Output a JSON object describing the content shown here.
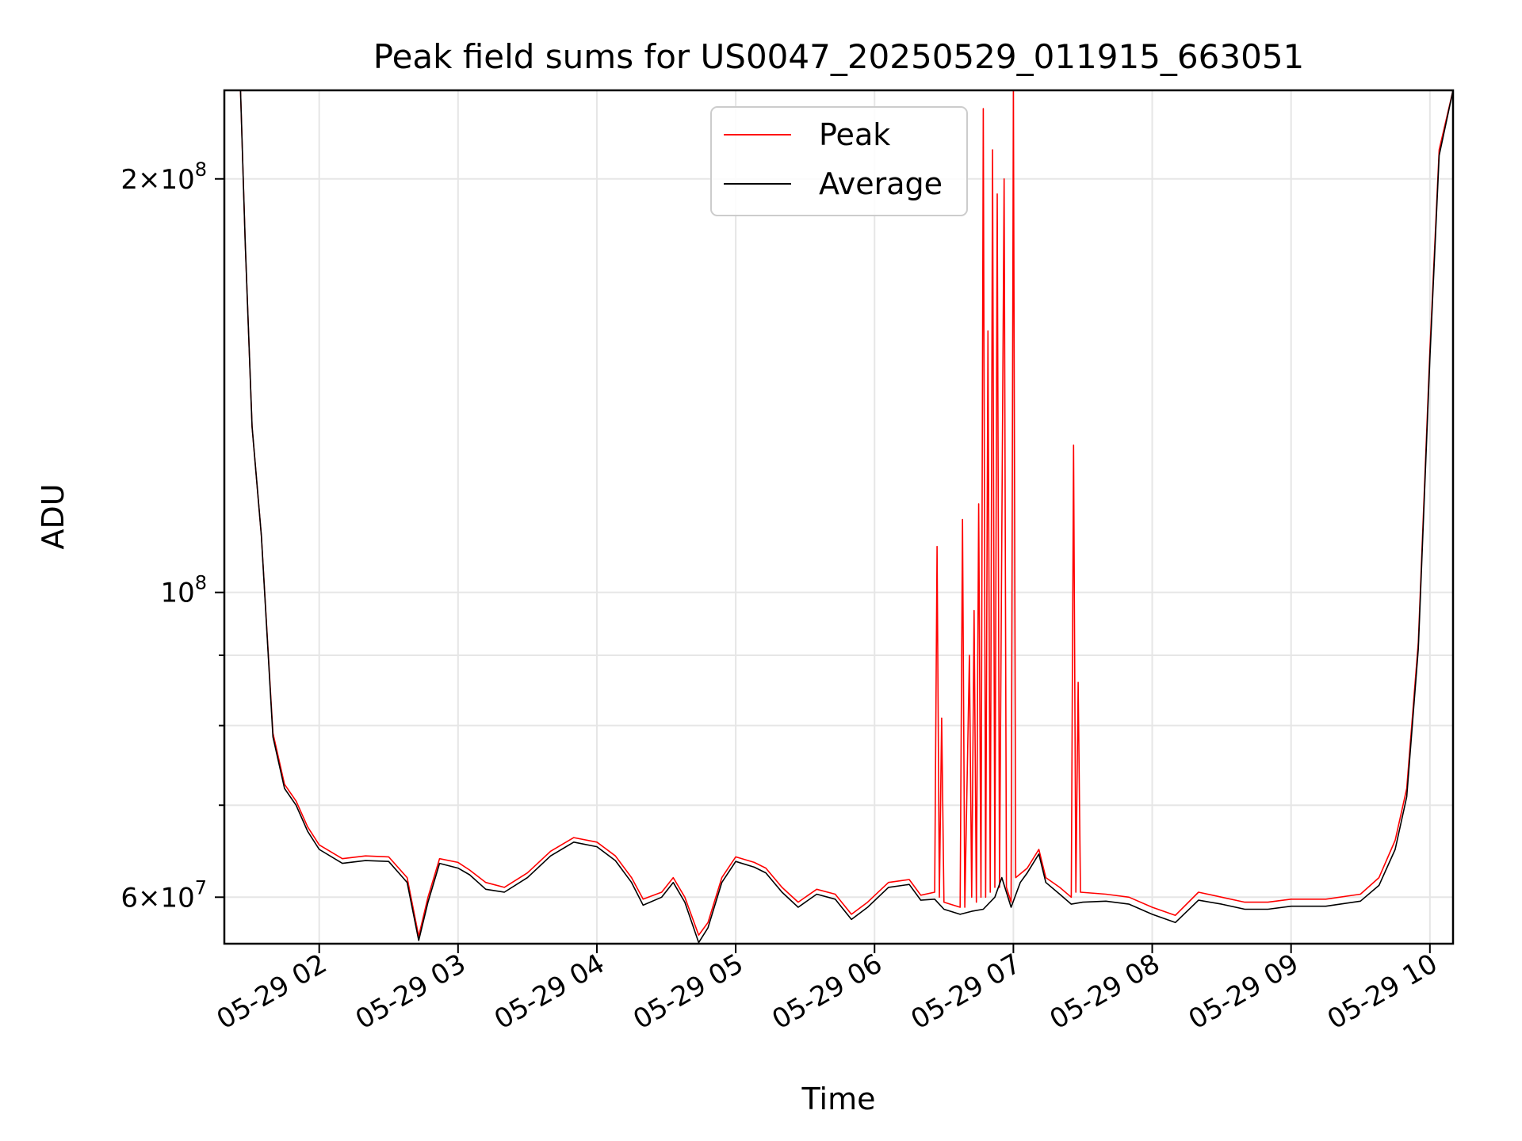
{
  "chart_data": {
    "type": "line",
    "title": "Peak field sums for US0047_20250529_011915_663051",
    "xlabel": "Time",
    "ylabel": "ADU",
    "yscale": "log",
    "grid": true,
    "legend_placement": "top-center",
    "xlim": [
      "2025-05-29 01:19",
      "2025-05-29 10:10"
    ],
    "ylim": [
      55500000,
      232000000
    ],
    "x_ticks": [
      {
        "value": "2025-05-29 02:00",
        "label": "05-29 02"
      },
      {
        "value": "2025-05-29 03:00",
        "label": "05-29 03"
      },
      {
        "value": "2025-05-29 04:00",
        "label": "05-29 04"
      },
      {
        "value": "2025-05-29 05:00",
        "label": "05-29 05"
      },
      {
        "value": "2025-05-29 06:00",
        "label": "05-29 06"
      },
      {
        "value": "2025-05-29 07:00",
        "label": "05-29 07"
      },
      {
        "value": "2025-05-29 08:00",
        "label": "05-29 08"
      },
      {
        "value": "2025-05-29 09:00",
        "label": "05-29 09"
      },
      {
        "value": "2025-05-29 10:00",
        "label": "05-29 10"
      }
    ],
    "y_major_ticks": [
      {
        "value": 60000000,
        "mantissa": "6",
        "exponent": "7"
      },
      {
        "value": 100000000,
        "mantissa": "",
        "exponent": "8"
      },
      {
        "value": 200000000,
        "mantissa": "2",
        "exponent": "8"
      }
    ],
    "y_minor_gridlines": [
      70000000,
      80000000,
      90000000
    ],
    "series": [
      {
        "name": "Peak",
        "color": "#ff0000",
        "points": [
          [
            "2025-05-29 01:26",
            232000000
          ],
          [
            "2025-05-29 01:28",
            180000000
          ],
          [
            "2025-05-29 01:31",
            132000000
          ],
          [
            "2025-05-29 01:35",
            110000000
          ],
          [
            "2025-05-29 01:40",
            79000000
          ],
          [
            "2025-05-29 01:45",
            72500000
          ],
          [
            "2025-05-29 01:50",
            70500000
          ],
          [
            "2025-05-29 01:55",
            67500000
          ],
          [
            "2025-05-29 02:00",
            65500000
          ],
          [
            "2025-05-29 02:10",
            64000000
          ],
          [
            "2025-05-29 02:20",
            64300000
          ],
          [
            "2025-05-29 02:30",
            64200000
          ],
          [
            "2025-05-29 02:38",
            62000000
          ],
          [
            "2025-05-29 02:43",
            56200000
          ],
          [
            "2025-05-29 02:47",
            60000000
          ],
          [
            "2025-05-29 02:52",
            64000000
          ],
          [
            "2025-05-29 03:00",
            63600000
          ],
          [
            "2025-05-29 03:05",
            62800000
          ],
          [
            "2025-05-29 03:12",
            61500000
          ],
          [
            "2025-05-29 03:20",
            61000000
          ],
          [
            "2025-05-29 03:30",
            62500000
          ],
          [
            "2025-05-29 03:40",
            64800000
          ],
          [
            "2025-05-29 03:50",
            66300000
          ],
          [
            "2025-05-29 04:00",
            65800000
          ],
          [
            "2025-05-29 04:08",
            64300000
          ],
          [
            "2025-05-29 04:15",
            62000000
          ],
          [
            "2025-05-29 04:20",
            59800000
          ],
          [
            "2025-05-29 04:28",
            60500000
          ],
          [
            "2025-05-29 04:33",
            62000000
          ],
          [
            "2025-05-29 04:38",
            60000000
          ],
          [
            "2025-05-29 04:44",
            56300000
          ],
          [
            "2025-05-29 04:48",
            57500000
          ],
          [
            "2025-05-29 04:54",
            62000000
          ],
          [
            "2025-05-29 05:00",
            64200000
          ],
          [
            "2025-05-29 05:08",
            63600000
          ],
          [
            "2025-05-29 05:13",
            63000000
          ],
          [
            "2025-05-29 05:20",
            61000000
          ],
          [
            "2025-05-29 05:27",
            59500000
          ],
          [
            "2025-05-29 05:35",
            60800000
          ],
          [
            "2025-05-29 05:43",
            60300000
          ],
          [
            "2025-05-29 05:50",
            58300000
          ],
          [
            "2025-05-29 05:57",
            59500000
          ],
          [
            "2025-05-29 06:06",
            61500000
          ],
          [
            "2025-05-29 06:15",
            61800000
          ],
          [
            "2025-05-29 06:20",
            60200000
          ],
          [
            "2025-05-29 06:26",
            60500000
          ],
          [
            "2025-05-29 06:27",
            108000000
          ],
          [
            "2025-05-29 06:28",
            60000000
          ],
          [
            "2025-05-29 06:29",
            81000000
          ],
          [
            "2025-05-29 06:30",
            59500000
          ],
          [
            "2025-05-29 06:37",
            59000000
          ],
          [
            "2025-05-29 06:38",
            113000000
          ],
          [
            "2025-05-29 06:39",
            59000000
          ],
          [
            "2025-05-29 06:41",
            90000000
          ],
          [
            "2025-05-29 06:42",
            60000000
          ],
          [
            "2025-05-29 06:43",
            97000000
          ],
          [
            "2025-05-29 06:44",
            59500000
          ],
          [
            "2025-05-29 06:45",
            116000000
          ],
          [
            "2025-05-29 06:46",
            60000000
          ],
          [
            "2025-05-29 06:47",
            225000000
          ],
          [
            "2025-05-29 06:48",
            60000000
          ],
          [
            "2025-05-29 06:49",
            155000000
          ],
          [
            "2025-05-29 06:50",
            60500000
          ],
          [
            "2025-05-29 06:51",
            210000000
          ],
          [
            "2025-05-29 06:52",
            61000000
          ],
          [
            "2025-05-29 06:53",
            195000000
          ],
          [
            "2025-05-29 06:54",
            61000000
          ],
          [
            "2025-05-29 06:56",
            200000000
          ],
          [
            "2025-05-29 06:57",
            61000000
          ],
          [
            "2025-05-29 06:59",
            59500000
          ],
          [
            "2025-05-29 07:00",
            232000000
          ],
          [
            "2025-05-29 07:01",
            62000000
          ],
          [
            "2025-05-29 07:06",
            63000000
          ],
          [
            "2025-05-29 07:11",
            65000000
          ],
          [
            "2025-05-29 07:14",
            62000000
          ],
          [
            "2025-05-29 07:20",
            61000000
          ],
          [
            "2025-05-29 07:25",
            60000000
          ],
          [
            "2025-05-29 07:26",
            128000000
          ],
          [
            "2025-05-29 07:27",
            60500000
          ],
          [
            "2025-05-29 07:28",
            86000000
          ],
          [
            "2025-05-29 07:29",
            60500000
          ],
          [
            "2025-05-29 07:40",
            60300000
          ],
          [
            "2025-05-29 07:50",
            60000000
          ],
          [
            "2025-05-29 08:00",
            59000000
          ],
          [
            "2025-05-29 08:10",
            58200000
          ],
          [
            "2025-05-29 08:20",
            60500000
          ],
          [
            "2025-05-29 08:30",
            60000000
          ],
          [
            "2025-05-29 08:40",
            59500000
          ],
          [
            "2025-05-29 08:50",
            59500000
          ],
          [
            "2025-05-29 09:00",
            59800000
          ],
          [
            "2025-05-29 09:15",
            59800000
          ],
          [
            "2025-05-29 09:30",
            60300000
          ],
          [
            "2025-05-29 09:38",
            62000000
          ],
          [
            "2025-05-29 09:45",
            66000000
          ],
          [
            "2025-05-29 09:50",
            72000000
          ],
          [
            "2025-05-29 09:55",
            92000000
          ],
          [
            "2025-05-29 10:00",
            150000000
          ],
          [
            "2025-05-29 10:04",
            210000000
          ],
          [
            "2025-05-29 10:10",
            232000000
          ]
        ]
      },
      {
        "name": "Average",
        "color": "#000000",
        "points": [
          [
            "2025-05-29 01:26",
            232000000
          ],
          [
            "2025-05-29 01:28",
            180000000
          ],
          [
            "2025-05-29 01:31",
            132000000
          ],
          [
            "2025-05-29 01:35",
            110000000
          ],
          [
            "2025-05-29 01:40",
            78500000
          ],
          [
            "2025-05-29 01:45",
            72000000
          ],
          [
            "2025-05-29 01:50",
            70000000
          ],
          [
            "2025-05-29 01:55",
            67000000
          ],
          [
            "2025-05-29 02:00",
            65000000
          ],
          [
            "2025-05-29 02:10",
            63500000
          ],
          [
            "2025-05-29 02:20",
            63800000
          ],
          [
            "2025-05-29 02:30",
            63700000
          ],
          [
            "2025-05-29 02:38",
            61500000
          ],
          [
            "2025-05-29 02:43",
            55800000
          ],
          [
            "2025-05-29 02:47",
            59500000
          ],
          [
            "2025-05-29 02:52",
            63500000
          ],
          [
            "2025-05-29 03:00",
            63000000
          ],
          [
            "2025-05-29 03:05",
            62300000
          ],
          [
            "2025-05-29 03:12",
            60800000
          ],
          [
            "2025-05-29 03:20",
            60500000
          ],
          [
            "2025-05-29 03:30",
            62000000
          ],
          [
            "2025-05-29 03:40",
            64300000
          ],
          [
            "2025-05-29 03:50",
            65800000
          ],
          [
            "2025-05-29 04:00",
            65300000
          ],
          [
            "2025-05-29 04:08",
            63800000
          ],
          [
            "2025-05-29 04:15",
            61500000
          ],
          [
            "2025-05-29 04:20",
            59200000
          ],
          [
            "2025-05-29 04:28",
            60000000
          ],
          [
            "2025-05-29 04:33",
            61500000
          ],
          [
            "2025-05-29 04:38",
            59500000
          ],
          [
            "2025-05-29 04:44",
            55600000
          ],
          [
            "2025-05-29 04:48",
            57000000
          ],
          [
            "2025-05-29 04:54",
            61500000
          ],
          [
            "2025-05-29 05:00",
            63700000
          ],
          [
            "2025-05-29 05:08",
            63100000
          ],
          [
            "2025-05-29 05:13",
            62500000
          ],
          [
            "2025-05-29 05:20",
            60500000
          ],
          [
            "2025-05-29 05:27",
            59000000
          ],
          [
            "2025-05-29 05:35",
            60300000
          ],
          [
            "2025-05-29 05:43",
            59800000
          ],
          [
            "2025-05-29 05:50",
            57800000
          ],
          [
            "2025-05-29 05:57",
            59000000
          ],
          [
            "2025-05-29 06:06",
            61000000
          ],
          [
            "2025-05-29 06:15",
            61300000
          ],
          [
            "2025-05-29 06:20",
            59700000
          ],
          [
            "2025-05-29 06:26",
            59800000
          ],
          [
            "2025-05-29 06:30",
            58800000
          ],
          [
            "2025-05-29 06:37",
            58300000
          ],
          [
            "2025-05-29 06:42",
            58600000
          ],
          [
            "2025-05-29 06:47",
            58800000
          ],
          [
            "2025-05-29 06:52",
            60000000
          ],
          [
            "2025-05-29 06:55",
            62000000
          ],
          [
            "2025-05-29 06:59",
            59000000
          ],
          [
            "2025-05-29 07:03",
            61500000
          ],
          [
            "2025-05-29 07:06",
            62500000
          ],
          [
            "2025-05-29 07:11",
            64500000
          ],
          [
            "2025-05-29 07:14",
            61500000
          ],
          [
            "2025-05-29 07:20",
            60300000
          ],
          [
            "2025-05-29 07:25",
            59300000
          ],
          [
            "2025-05-29 07:30",
            59500000
          ],
          [
            "2025-05-29 07:40",
            59600000
          ],
          [
            "2025-05-29 07:50",
            59300000
          ],
          [
            "2025-05-29 08:00",
            58300000
          ],
          [
            "2025-05-29 08:10",
            57500000
          ],
          [
            "2025-05-29 08:20",
            59700000
          ],
          [
            "2025-05-29 08:30",
            59300000
          ],
          [
            "2025-05-29 08:40",
            58800000
          ],
          [
            "2025-05-29 08:50",
            58800000
          ],
          [
            "2025-05-29 09:00",
            59100000
          ],
          [
            "2025-05-29 09:15",
            59100000
          ],
          [
            "2025-05-29 09:30",
            59600000
          ],
          [
            "2025-05-29 09:38",
            61200000
          ],
          [
            "2025-05-29 09:45",
            65000000
          ],
          [
            "2025-05-29 09:50",
            71000000
          ],
          [
            "2025-05-29 09:55",
            91000000
          ],
          [
            "2025-05-29 10:00",
            148000000
          ],
          [
            "2025-05-29 10:04",
            208000000
          ],
          [
            "2025-05-29 10:10",
            232000000
          ]
        ]
      }
    ]
  }
}
